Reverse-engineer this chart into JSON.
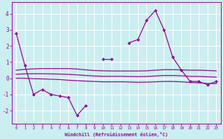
{
  "xlabel": "Windchill (Refroidissement éolien,°C)",
  "bg_color": "#cbeef0",
  "line_color": "#990099",
  "grid_color": "#ffffff",
  "x_ticks": [
    0,
    1,
    2,
    3,
    4,
    5,
    6,
    7,
    8,
    9,
    10,
    11,
    12,
    13,
    14,
    15,
    16,
    17,
    18,
    19,
    20,
    21,
    22,
    23
  ],
  "y_ticks": [
    -2,
    -1,
    0,
    1,
    2,
    3,
    4
  ],
  "ylim": [
    -2.8,
    4.7
  ],
  "xlim": [
    -0.5,
    23.5
  ],
  "main_x": [
    0,
    1,
    2,
    3,
    4,
    5,
    6,
    7,
    8,
    10,
    11,
    13,
    14,
    15,
    16,
    17,
    18,
    19,
    20,
    21,
    22,
    23
  ],
  "main_y": [
    2.8,
    0.8,
    -1.0,
    -0.7,
    -1.0,
    -1.1,
    -1.2,
    -2.3,
    -1.7,
    1.2,
    1.2,
    2.2,
    2.4,
    3.6,
    4.2,
    3.0,
    1.3,
    0.5,
    -0.2,
    -0.2,
    -0.4,
    -0.2
  ],
  "band_top_x": [
    0,
    1,
    2,
    3,
    4,
    5,
    6,
    7,
    8,
    9,
    10,
    11,
    12,
    13,
    14,
    15,
    16,
    17,
    18,
    19,
    20,
    21,
    22,
    23
  ],
  "band_top_y": [
    0.5,
    0.55,
    0.58,
    0.6,
    0.6,
    0.6,
    0.6,
    0.57,
    0.52,
    0.48,
    0.46,
    0.45,
    0.45,
    0.45,
    0.45,
    0.46,
    0.5,
    0.53,
    0.53,
    0.52,
    0.5,
    0.5,
    0.48,
    0.46
  ],
  "band_mid_y": [
    0.25,
    0.27,
    0.28,
    0.28,
    0.27,
    0.26,
    0.24,
    0.21,
    0.17,
    0.14,
    0.12,
    0.12,
    0.12,
    0.11,
    0.1,
    0.11,
    0.14,
    0.17,
    0.17,
    0.15,
    0.12,
    0.11,
    0.09,
    0.07
  ],
  "band_bot_y": [
    0.0,
    0.0,
    -0.03,
    -0.04,
    -0.06,
    -0.08,
    -0.12,
    -0.15,
    -0.18,
    -0.2,
    -0.22,
    -0.22,
    -0.22,
    -0.23,
    -0.25,
    -0.24,
    -0.22,
    -0.2,
    -0.2,
    -0.22,
    -0.26,
    -0.29,
    -0.32,
    -0.34
  ]
}
